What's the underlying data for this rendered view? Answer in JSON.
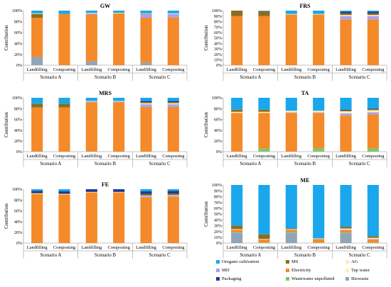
{
  "colors": {
    "Oregano cultivation": "#1AA7EC",
    "MS": "#8C6D1F",
    "AG": "#FFE4C8",
    "MD": "#A9A2F0",
    "Electricity": "#F48A2A",
    "Tap water": "#FFF1B0",
    "Packaging": "#1F3A93",
    "Wastewater unpolluted": "#7EC86A",
    "Biowaste": "#8FA6B8"
  },
  "legend": {
    "entries": [
      "Oregano cultivation",
      "MS",
      "AG",
      "MD",
      "Electricity",
      "Tap water",
      "Packaging",
      "Wastewater unpolluted",
      "Biowaste"
    ]
  },
  "chart_data": [
    {
      "type": "bar",
      "stacked": true,
      "title": "GW",
      "ylabel": "Contribution",
      "ylim": [
        0,
        100
      ],
      "yticks": [
        "0%",
        "20%",
        "40%",
        "60%",
        "80%",
        "100%"
      ],
      "categories": [
        "Landfilling",
        "Composting",
        "Landfilling",
        "Composting",
        "Landfilling",
        "Composting"
      ],
      "groups": [
        "Scenario A",
        "Scenario B",
        "Scenario C"
      ],
      "series": [
        {
          "name": "Biowaste",
          "values": [
            15,
            0,
            7,
            0,
            5,
            0
          ]
        },
        {
          "name": "Wastewater unpolluted",
          "values": [
            0,
            0,
            0,
            0,
            0,
            0
          ]
        },
        {
          "name": "Electricity",
          "values": [
            72,
            94,
            86,
            95,
            82,
            88
          ]
        },
        {
          "name": "MD",
          "values": [
            0,
            0,
            2,
            0,
            6,
            6
          ]
        },
        {
          "name": "MS",
          "values": [
            7,
            0,
            0,
            0,
            1,
            0
          ]
        },
        {
          "name": "Tap water",
          "values": [
            1,
            0,
            1,
            1,
            1,
            1
          ]
        },
        {
          "name": "Packaging",
          "values": [
            0,
            0,
            0,
            0,
            0,
            0
          ]
        },
        {
          "name": "Oregano cultivation",
          "values": [
            5,
            6,
            4,
            4,
            5,
            5
          ]
        }
      ]
    },
    {
      "type": "bar",
      "stacked": true,
      "title": "FRS",
      "ylabel": "Contribution",
      "ylim": [
        0,
        100
      ],
      "yticks": [
        "0%",
        "10%",
        "20%",
        "30%",
        "40%",
        "50%",
        "60%",
        "70%",
        "80%",
        "90%",
        "100%"
      ],
      "categories": [
        "Landfilling",
        "Composting",
        "Landfilling",
        "Composting",
        "Landfilling",
        "Composting"
      ],
      "groups": [
        "Scenario A",
        "Scenario B",
        "Scenario C"
      ],
      "series": [
        {
          "name": "Electricity",
          "values": [
            90,
            90,
            93,
            93,
            84,
            84
          ]
        },
        {
          "name": "MD",
          "values": [
            0,
            0,
            0,
            0,
            6,
            6
          ]
        },
        {
          "name": "Tap water",
          "values": [
            0,
            0,
            1,
            1,
            2,
            2
          ]
        },
        {
          "name": "MS",
          "values": [
            10,
            9,
            0,
            0,
            3,
            3
          ]
        },
        {
          "name": "Packaging",
          "values": [
            0,
            0,
            0,
            0,
            3,
            3
          ]
        },
        {
          "name": "Oregano cultivation",
          "values": [
            0,
            1,
            6,
            6,
            2,
            2
          ]
        }
      ]
    },
    {
      "type": "bar",
      "stacked": true,
      "title": "MRS",
      "ylabel": "Contribution",
      "ylim": [
        0,
        100
      ],
      "yticks": [
        "0%",
        "20%",
        "40%",
        "60%",
        "80%",
        "100%"
      ],
      "categories": [
        "Landfilling",
        "Composting",
        "Landfilling",
        "Composting",
        "Landfilling",
        "Composting"
      ],
      "groups": [
        "Scenario A",
        "Scenario B",
        "Scenario C"
      ],
      "series": [
        {
          "name": "Electricity",
          "values": [
            82,
            82,
            92,
            92,
            83,
            83
          ]
        },
        {
          "name": "MD",
          "values": [
            0,
            0,
            1,
            1,
            5,
            5
          ]
        },
        {
          "name": "Tap water",
          "values": [
            0,
            0,
            1,
            1,
            2,
            2
          ]
        },
        {
          "name": "MS",
          "values": [
            7,
            7,
            0,
            0,
            2,
            2
          ]
        },
        {
          "name": "Packaging",
          "values": [
            0,
            0,
            0,
            0,
            2,
            2
          ]
        },
        {
          "name": "Oregano cultivation",
          "values": [
            11,
            11,
            6,
            6,
            6,
            6
          ]
        }
      ]
    },
    {
      "type": "bar",
      "stacked": true,
      "title": "TA",
      "ylabel": "Contribution",
      "ylim": [
        0,
        100
      ],
      "yticks": [
        "0%",
        "20%",
        "40%",
        "60%",
        "80%",
        "100%"
      ],
      "categories": [
        "Landfilling",
        "Composting",
        "Landfilling",
        "Composting",
        "Landfilling",
        "Composting"
      ],
      "groups": [
        "Scenario A",
        "Scenario B",
        "Scenario C"
      ],
      "series": [
        {
          "name": "Wastewater unpolluted",
          "values": [
            0,
            6,
            0,
            6,
            0,
            6
          ]
        },
        {
          "name": "Electricity",
          "values": [
            72,
            66,
            72,
            66,
            67,
            63
          ]
        },
        {
          "name": "MD",
          "values": [
            0,
            0,
            1,
            1,
            4,
            4
          ]
        },
        {
          "name": "Tap water",
          "values": [
            2,
            2,
            3,
            3,
            4,
            4
          ]
        },
        {
          "name": "MS",
          "values": [
            4,
            4,
            0,
            0,
            2,
            2
          ]
        },
        {
          "name": "Packaging",
          "values": [
            0,
            0,
            0,
            0,
            1,
            1
          ]
        },
        {
          "name": "Oregano cultivation",
          "values": [
            22,
            22,
            24,
            24,
            22,
            20
          ]
        }
      ]
    },
    {
      "type": "bar",
      "stacked": true,
      "title": "FE",
      "ylabel": "Contribution",
      "ylim": [
        0,
        100
      ],
      "yticks": [
        "0%",
        "20%",
        "40%",
        "60%",
        "80%",
        "100%"
      ],
      "categories": [
        "Landfilling",
        "Composting",
        "Landfilling",
        "Composting",
        "Landfilling",
        "Composting"
      ],
      "groups": [
        "Scenario A",
        "Scenario B",
        "Scenario C"
      ],
      "series": [
        {
          "name": "Electricity",
          "values": [
            91,
            90,
            94,
            94,
            85,
            86
          ]
        },
        {
          "name": "MD",
          "values": [
            0,
            0,
            0,
            0,
            2,
            2
          ]
        },
        {
          "name": "Tap water",
          "values": [
            1,
            1,
            1,
            1,
            1,
            1
          ]
        },
        {
          "name": "MS",
          "values": [
            1,
            1,
            0,
            0,
            3,
            3
          ]
        },
        {
          "name": "Packaging",
          "values": [
            4,
            4,
            5,
            5,
            5,
            5
          ]
        },
        {
          "name": "Oregano cultivation",
          "values": [
            3,
            4,
            0,
            0,
            4,
            3
          ]
        }
      ]
    },
    {
      "type": "bar",
      "stacked": true,
      "title": "ME",
      "ylabel": "Contribution",
      "ylim": [
        0,
        100
      ],
      "yticks": [
        "0%",
        "10%",
        "20%",
        "30%",
        "40%",
        "50%",
        "60%",
        "70%",
        "80%",
        "90%",
        "100%"
      ],
      "categories": [
        "Landfilling",
        "Composting",
        "Landfilling",
        "Composting",
        "Landfilling",
        "Composting"
      ],
      "groups": [
        "Scenario A",
        "Scenario B",
        "Scenario C"
      ],
      "series": [
        {
          "name": "Biowaste",
          "values": [
            18,
            0,
            18,
            0,
            17,
            0
          ]
        },
        {
          "name": "Wastewater unpolluted",
          "values": [
            1,
            1,
            1,
            1,
            1,
            1
          ]
        },
        {
          "name": "Electricity",
          "values": [
            4,
            5,
            4,
            6,
            4,
            5
          ]
        },
        {
          "name": "MD",
          "values": [
            0,
            0,
            0,
            0,
            1,
            1
          ]
        },
        {
          "name": "AG",
          "values": [
            1,
            1,
            1,
            1,
            2,
            2
          ]
        },
        {
          "name": "MS",
          "values": [
            6,
            8,
            1,
            0,
            3,
            3
          ]
        },
        {
          "name": "Oregano cultivation",
          "values": [
            70,
            85,
            75,
            92,
            72,
            88
          ]
        }
      ]
    }
  ]
}
